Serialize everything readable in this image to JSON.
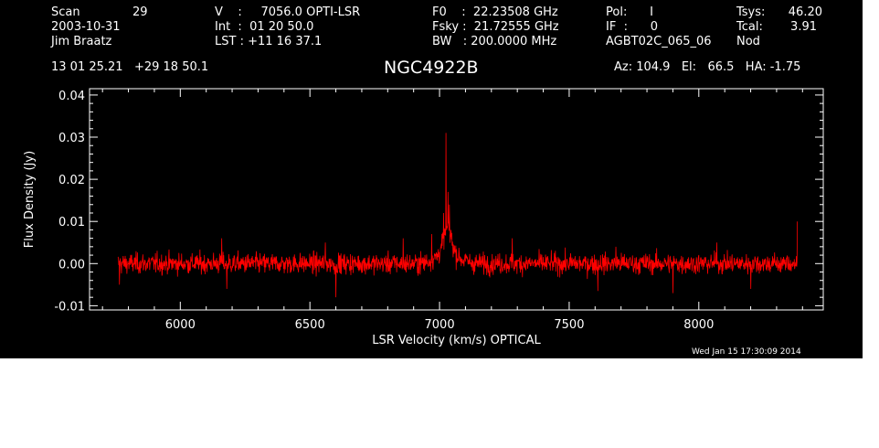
{
  "header": {
    "scan_label": "Scan",
    "scan_value": "29",
    "date": "2003-10-31",
    "observer": "Jim Braatz",
    "coords": "13 01 25.21   +29 18 50.1",
    "v_line": "V    :     7056.0 OPTI-LSR",
    "int_line": "Int  :  01 20 50.0",
    "lst_line": "LST : +11 16 37.1",
    "f0_line": "F0    :  22.23508 GHz",
    "fsky_line": "Fsky :  21.72555 GHz",
    "bw_line": "BW   : 200.0000 MHz",
    "pol_line": "Pol:      I",
    "if_line": "IF  :      0",
    "project": "AGBT02C_065_06",
    "tsys_label": "Tsys:",
    "tsys_value": "46.20",
    "tcal_label": "Tcal:",
    "tcal_value": "3.91",
    "mode": "Nod",
    "source": "NGC4922B",
    "az_el_ha": "Az: 104.9   El:   66.5   HA: -1.75"
  },
  "footer": {
    "timestamp": "Wed Jan 15 17:30:09 2014"
  },
  "colors": {
    "background": "#000000",
    "axes": "#ffffff",
    "trace": "#ff0000"
  },
  "chart_data": {
    "type": "line",
    "xlabel": "LSR Velocity (km/s) OPTICAL",
    "ylabel": "Flux Density (Jy)",
    "xlim": [
      5650,
      8480
    ],
    "ylim": [
      -0.011,
      0.0415
    ],
    "x_ticks": [
      6000,
      6500,
      7000,
      7500,
      8000
    ],
    "x_tick_labels": [
      "6000",
      "6500",
      "7000",
      "7500",
      "8000"
    ],
    "y_ticks": [
      -0.01,
      0.0,
      0.01,
      0.02,
      0.03,
      0.04
    ],
    "y_tick_labels": [
      "-0.01",
      "0.00",
      "0.01",
      "0.02",
      "0.03",
      "0.04"
    ],
    "series": [
      {
        "color": "#ff0000",
        "x_range": [
          5760,
          8380
        ],
        "baseline_rms": 0.0022,
        "peaks": [
          {
            "x": 6160,
            "y": 0.006
          },
          {
            "x": 6560,
            "y": 0.005
          },
          {
            "x": 6860,
            "y": 0.006
          },
          {
            "x": 6970,
            "y": 0.007
          },
          {
            "x": 7015,
            "y": 0.012
          },
          {
            "x": 7025,
            "y": 0.031
          },
          {
            "x": 7032,
            "y": 0.017
          },
          {
            "x": 7038,
            "y": 0.014
          },
          {
            "x": 7045,
            "y": 0.008
          },
          {
            "x": 7280,
            "y": 0.006
          },
          {
            "x": 7680,
            "y": 0.004
          },
          {
            "x": 8070,
            "y": 0.005
          },
          {
            "x": 8380,
            "y": 0.01
          }
        ],
        "troughs": [
          {
            "x": 6600,
            "y": -0.008
          },
          {
            "x": 6180,
            "y": -0.006
          },
          {
            "x": 7900,
            "y": -0.007
          },
          {
            "x": 8200,
            "y": -0.006
          },
          {
            "x": 7610,
            "y": -0.0065
          },
          {
            "x": 5765,
            "y": -0.005
          }
        ]
      }
    ]
  }
}
